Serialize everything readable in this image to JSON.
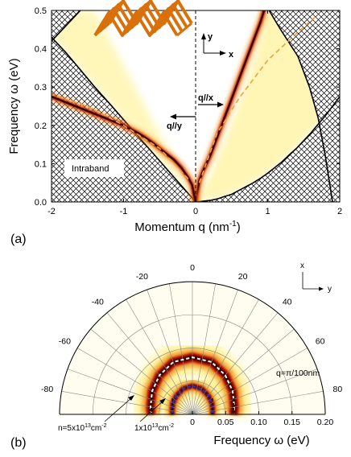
{
  "chart_data": [
    {
      "type": "heatmap",
      "panel_label": "(a)",
      "xlabel": "Momentum q (nm",
      "xlabel_sup": "-1",
      "xlabel_end": ")",
      "ylabel": "Frequency ω (eV)",
      "xlim": [
        -2,
        2
      ],
      "ylim": [
        0,
        0.5
      ],
      "xticks": [
        "-2",
        "-1",
        "0",
        "1",
        "2"
      ],
      "yticks": [
        "0.0",
        "0.1",
        "0.2",
        "0.3",
        "0.4",
        "0.5"
      ],
      "annotations": {
        "q_parallel_x": "q//x",
        "q_parallel_y": "q//y",
        "intraband": "Intraband",
        "axis_y": "y",
        "axis_x": "x"
      },
      "plasmon_x_branch": {
        "q": [
          0.0,
          0.05,
          0.1,
          0.2,
          0.3,
          0.4,
          0.5,
          0.6,
          0.7,
          0.8,
          0.9,
          0.95
        ],
        "omega": [
          0.0,
          0.055,
          0.08,
          0.12,
          0.17,
          0.22,
          0.27,
          0.32,
          0.37,
          0.42,
          0.47,
          0.5
        ]
      },
      "plasmon_y_branch": {
        "q": [
          0.0,
          -0.05,
          -0.1,
          -0.2,
          -0.3,
          -0.4,
          -0.5,
          -0.6,
          -0.7,
          -0.8,
          -0.9,
          -1.0,
          -1.2,
          -1.4,
          -1.6,
          -1.8,
          -2.0
        ],
        "omega": [
          0.0,
          0.045,
          0.063,
          0.09,
          0.11,
          0.125,
          0.14,
          0.155,
          0.168,
          0.18,
          0.19,
          0.2,
          0.215,
          0.23,
          0.245,
          0.26,
          0.275
        ]
      },
      "intraband_boundary_right": {
        "q": [
          0.0,
          0.1,
          0.2,
          0.3,
          0.4,
          0.5,
          0.6,
          0.7,
          0.8,
          0.9,
          1.0,
          1.1,
          1.2,
          1.3,
          1.4,
          1.5,
          1.6,
          1.7,
          1.8,
          1.9,
          2.0
        ],
        "omega": [
          0.0,
          0.002,
          0.004,
          0.008,
          0.014,
          0.02,
          0.03,
          0.04,
          0.05,
          0.062,
          0.075,
          0.09,
          0.105,
          0.123,
          0.14,
          0.16,
          0.18,
          0.203,
          0.225,
          0.25,
          0.275
        ]
      },
      "intraband_boundary_left": {
        "q": [
          0.0,
          -0.2,
          -0.4,
          -0.6,
          -0.8,
          -1.0,
          -1.2,
          -1.4,
          -1.6,
          -1.8,
          -2.0
        ],
        "omega": [
          0.0,
          0.043,
          0.086,
          0.129,
          0.172,
          0.215,
          0.258,
          0.3,
          0.345,
          0.39,
          0.43
        ]
      },
      "interband_boundary_right": {
        "q": [
          0.0,
          0.2,
          0.4,
          0.6,
          0.8,
          0.9,
          0.95
        ],
        "omega": [
          0.0,
          0.07,
          0.16,
          0.26,
          0.37,
          0.44,
          0.5
        ]
      },
      "interband_boundary_left": {
        "q": [
          -1.4,
          -1.6,
          -1.8,
          -2.0
        ],
        "omega": [
          0.5,
          0.47,
          0.445,
          0.42
        ]
      },
      "dashed_orange_right": {
        "q": [
          0.05,
          0.3,
          0.6,
          1.0,
          1.4,
          1.7
        ],
        "omega": [
          0.05,
          0.18,
          0.27,
          0.37,
          0.44,
          0.49
        ]
      },
      "dashed_orange_left": {
        "q": [
          -0.1,
          -0.5,
          -1.0,
          -1.5,
          -2.0
        ],
        "omega": [
          0.06,
          0.14,
          0.2,
          0.25,
          0.28
        ]
      }
    },
    {
      "type": "polar",
      "panel_label": "(b)",
      "xlabel": "Frequency ω (eV)",
      "radial_ticks": [
        "0",
        "0.05",
        "0.10",
        "0.15",
        "0.20"
      ],
      "radial_max": 0.2,
      "angle_ticks": [
        "-80",
        "-60",
        "-40",
        "-20",
        "0",
        "20",
        "40",
        "60",
        "80"
      ],
      "annotations": {
        "q_value": "q=π/100nm",
        "axis_x": "x",
        "axis_y": "y"
      },
      "density_labels": [
        {
          "n": "n=5x10",
          "exp": "13",
          "unit": "cm",
          "unit_exp": "-2"
        },
        {
          "n": "1x10",
          "exp": "13",
          "unit": "cm",
          "unit_exp": "-2"
        }
      ],
      "series": [
        {
          "color": "#ffffff",
          "angle_deg": [
            -90,
            -80,
            -60,
            -40,
            -20,
            0,
            20,
            40,
            60,
            80,
            90
          ],
          "omega": [
            0.062,
            0.064,
            0.07,
            0.077,
            0.084,
            0.086,
            0.084,
            0.077,
            0.07,
            0.064,
            0.062
          ]
        },
        {
          "color": "#2233cc",
          "angle_deg": [
            -90,
            -80,
            -60,
            -40,
            -20,
            0,
            20,
            40,
            60,
            80,
            90
          ],
          "omega": [
            0.03,
            0.031,
            0.034,
            0.037,
            0.041,
            0.043,
            0.041,
            0.037,
            0.034,
            0.031,
            0.03
          ]
        }
      ]
    }
  ],
  "colors": {
    "heat_dark": "#3a0000",
    "heat_red": "#c01800",
    "heat_orange": "#f09020",
    "heat_yellow": "#ffee77",
    "orange_dashed": "#f0a040",
    "lattice": "#d9700a"
  }
}
